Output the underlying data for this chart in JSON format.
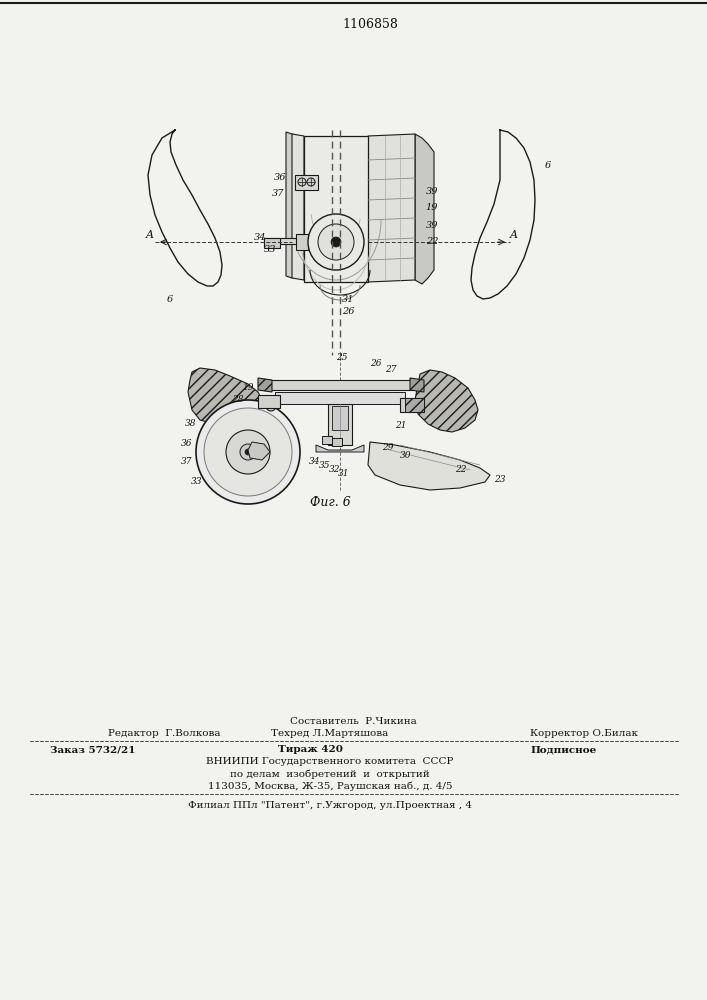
{
  "patent_number": "1106858",
  "fig_label": "Фиг. 6",
  "bg_color": "#f2f2ee",
  "line_color": "#1a1a1a",
  "footer": {
    "line1_center": "Составитель  Р.Чикина",
    "line2_left": "Редактор  Г.Волкова",
    "line2_center": "Техред Л.Мартяшова",
    "line2_right": "Корректор О.Билак",
    "line3_left": "Заказ 5732/21",
    "line3_center": "Тираж 420",
    "line3_right": "Подписное",
    "line4": "ВНИИПИ Государственного комитета  СССР",
    "line5": "по делам  изобретений  и  открытий",
    "line6": "113035, Москва, Ж-35, Раушская наб., д. 4/5",
    "line7": "Филиал ППл \"Патент\", г.Ужгород, ул.Проектная , 4"
  }
}
